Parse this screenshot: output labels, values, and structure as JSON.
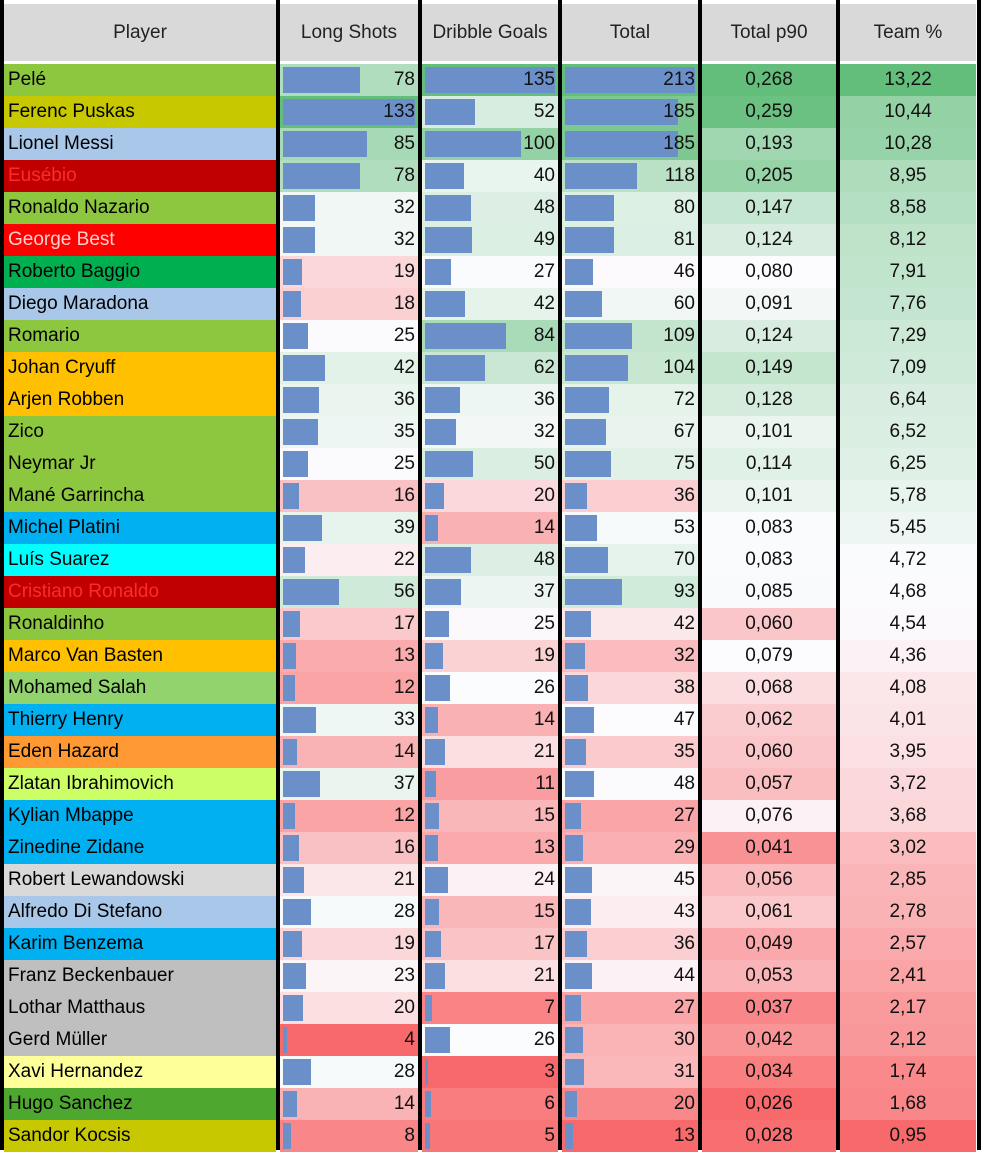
{
  "headers": {
    "player": "Player",
    "long_shots": "Long Shots",
    "dribble_goals": "Dribble Goals",
    "total": "Total",
    "total_p90": "Total p90",
    "team_pct": "Team %"
  },
  "colors": {
    "bar": "#6a8fc9",
    "header": "#d9d9d9",
    "high": "#63be7b",
    "mid": "#fcfcff",
    "low": "#f8696b"
  },
  "rows": [
    {
      "player": "Pelé",
      "color": "#8dc63f",
      "text_color": "#000000",
      "long_shots": "78",
      "dribble_goals": "135",
      "total": "213",
      "p90": "0,268",
      "team": "13,22"
    },
    {
      "player": "Ferenc Puskas",
      "color": "#c8c800",
      "text_color": "#000000",
      "long_shots": "133",
      "dribble_goals": "52",
      "total": "185",
      "p90": "0,259",
      "team": "10,44"
    },
    {
      "player": "Lionel Messi",
      "color": "#a9c7e8",
      "text_color": "#000000",
      "long_shots": "85",
      "dribble_goals": "100",
      "total": "185",
      "p90": "0,193",
      "team": "10,28"
    },
    {
      "player": "Eusébio",
      "color": "#c00000",
      "text_color": "#ff2a2a",
      "long_shots": "78",
      "dribble_goals": "40",
      "total": "118",
      "p90": "0,205",
      "team": "8,95"
    },
    {
      "player": "Ronaldo Nazario",
      "color": "#8dc63f",
      "text_color": "#000000",
      "long_shots": "32",
      "dribble_goals": "48",
      "total": "80",
      "p90": "0,147",
      "team": "8,58"
    },
    {
      "player": "George Best",
      "color": "#ff0000",
      "text_color": "#ffd0d0",
      "long_shots": "32",
      "dribble_goals": "49",
      "total": "81",
      "p90": "0,124",
      "team": "8,12"
    },
    {
      "player": "Roberto Baggio",
      "color": "#00b050",
      "text_color": "#000000",
      "long_shots": "19",
      "dribble_goals": "27",
      "total": "46",
      "p90": "0,080",
      "team": "7,91"
    },
    {
      "player": "Diego Maradona",
      "color": "#a9c7e8",
      "text_color": "#000000",
      "long_shots": "18",
      "dribble_goals": "42",
      "total": "60",
      "p90": "0,091",
      "team": "7,76"
    },
    {
      "player": "Romario",
      "color": "#8dc63f",
      "text_color": "#000000",
      "long_shots": "25",
      "dribble_goals": "84",
      "total": "109",
      "p90": "0,124",
      "team": "7,29"
    },
    {
      "player": "Johan Cryuff",
      "color": "#ffc000",
      "text_color": "#000000",
      "long_shots": "42",
      "dribble_goals": "62",
      "total": "104",
      "p90": "0,149",
      "team": "7,09"
    },
    {
      "player": "Arjen Robben",
      "color": "#ffc000",
      "text_color": "#000000",
      "long_shots": "36",
      "dribble_goals": "36",
      "total": "72",
      "p90": "0,128",
      "team": "6,64"
    },
    {
      "player": "Zico",
      "color": "#8dc63f",
      "text_color": "#000000",
      "long_shots": "35",
      "dribble_goals": "32",
      "total": "67",
      "p90": "0,101",
      "team": "6,52"
    },
    {
      "player": "Neymar Jr",
      "color": "#8dc63f",
      "text_color": "#000000",
      "long_shots": "25",
      "dribble_goals": "50",
      "total": "75",
      "p90": "0,114",
      "team": "6,25"
    },
    {
      "player": "Mané Garrincha",
      "color": "#8dc63f",
      "text_color": "#000000",
      "long_shots": "16",
      "dribble_goals": "20",
      "total": "36",
      "p90": "0,101",
      "team": "5,78"
    },
    {
      "player": "Michel Platini",
      "color": "#00b0f0",
      "text_color": "#000000",
      "long_shots": "39",
      "dribble_goals": "14",
      "total": "53",
      "p90": "0,083",
      "team": "5,45"
    },
    {
      "player": "Luís Suarez",
      "color": "#00ffff",
      "text_color": "#000000",
      "long_shots": "22",
      "dribble_goals": "48",
      "total": "70",
      "p90": "0,083",
      "team": "4,72"
    },
    {
      "player": "Cristiano Ronaldo",
      "color": "#c00000",
      "text_color": "#ff2a2a",
      "long_shots": "56",
      "dribble_goals": "37",
      "total": "93",
      "p90": "0,085",
      "team": "4,68"
    },
    {
      "player": "Ronaldinho",
      "color": "#8dc63f",
      "text_color": "#000000",
      "long_shots": "17",
      "dribble_goals": "25",
      "total": "42",
      "p90": "0,060",
      "team": "4,54"
    },
    {
      "player": "Marco Van Basten",
      "color": "#ffc000",
      "text_color": "#000000",
      "long_shots": "13",
      "dribble_goals": "19",
      "total": "32",
      "p90": "0,079",
      "team": "4,36"
    },
    {
      "player": "Mohamed Salah",
      "color": "#92d36e",
      "text_color": "#000000",
      "long_shots": "12",
      "dribble_goals": "26",
      "total": "38",
      "p90": "0,068",
      "team": "4,08"
    },
    {
      "player": "Thierry Henry",
      "color": "#00b0f0",
      "text_color": "#000000",
      "long_shots": "33",
      "dribble_goals": "14",
      "total": "47",
      "p90": "0,062",
      "team": "4,01"
    },
    {
      "player": "Eden Hazard",
      "color": "#ff9933",
      "text_color": "#000000",
      "long_shots": "14",
      "dribble_goals": "21",
      "total": "35",
      "p90": "0,060",
      "team": "3,95"
    },
    {
      "player": "Zlatan Ibrahimovich",
      "color": "#ccff66",
      "text_color": "#000000",
      "long_shots": "37",
      "dribble_goals": "11",
      "total": "48",
      "p90": "0,057",
      "team": "3,72"
    },
    {
      "player": "Kylian Mbappe",
      "color": "#00b0f0",
      "text_color": "#000000",
      "long_shots": "12",
      "dribble_goals": "15",
      "total": "27",
      "p90": "0,076",
      "team": "3,68"
    },
    {
      "player": "Zinedine Zidane",
      "color": "#00b0f0",
      "text_color": "#000000",
      "long_shots": "16",
      "dribble_goals": "13",
      "total": "29",
      "p90": "0,041",
      "team": "3,02"
    },
    {
      "player": "Robert Lewandowski",
      "color": "#d9d9d9",
      "text_color": "#000000",
      "long_shots": "21",
      "dribble_goals": "24",
      "total": "45",
      "p90": "0,056",
      "team": "2,85"
    },
    {
      "player": "Alfredo Di Stefano",
      "color": "#a9c7e8",
      "text_color": "#000000",
      "long_shots": "28",
      "dribble_goals": "15",
      "total": "43",
      "p90": "0,061",
      "team": "2,78"
    },
    {
      "player": "Karim Benzema",
      "color": "#00b0f0",
      "text_color": "#000000",
      "long_shots": "19",
      "dribble_goals": "17",
      "total": "36",
      "p90": "0,049",
      "team": "2,57"
    },
    {
      "player": "Franz Beckenbauer",
      "color": "#bfbfbf",
      "text_color": "#000000",
      "long_shots": "23",
      "dribble_goals": "21",
      "total": "44",
      "p90": "0,053",
      "team": "2,41"
    },
    {
      "player": "Lothar Matthaus",
      "color": "#bfbfbf",
      "text_color": "#000000",
      "long_shots": "20",
      "dribble_goals": "7",
      "total": "27",
      "p90": "0,037",
      "team": "2,17"
    },
    {
      "player": "Gerd Müller",
      "color": "#bfbfbf",
      "text_color": "#000000",
      "long_shots": "4",
      "dribble_goals": "26",
      "total": "30",
      "p90": "0,042",
      "team": "2,12"
    },
    {
      "player": "Xavi Hernandez",
      "color": "#ffff99",
      "text_color": "#000000",
      "long_shots": "28",
      "dribble_goals": "3",
      "total": "31",
      "p90": "0,034",
      "team": "1,74"
    },
    {
      "player": "Hugo Sanchez",
      "color": "#4ea72e",
      "text_color": "#000000",
      "long_shots": "14",
      "dribble_goals": "6",
      "total": "20",
      "p90": "0,026",
      "team": "1,68"
    },
    {
      "player": "Sandor Kocsis",
      "color": "#c8c800",
      "text_color": "#000000",
      "long_shots": "8",
      "dribble_goals": "5",
      "total": "13",
      "p90": "0,028",
      "team": "0,95"
    }
  ]
}
